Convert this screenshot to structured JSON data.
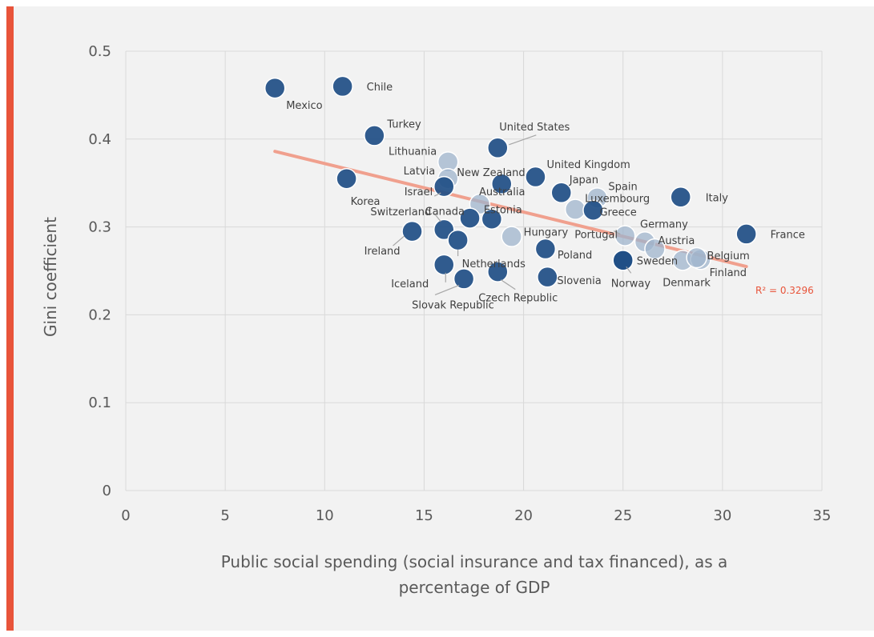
{
  "colors": {
    "accent": "#e8543a",
    "background": "#f2f2f2",
    "marker_fill": "#1f4e85",
    "marker_alt_fill": "#9fb4cc",
    "trendline": "#f0a08e",
    "r2_text": "#e8543a"
  },
  "chart_data": {
    "type": "scatter",
    "title": "",
    "xlabel_lines": [
      "Public social spending (social insurance and tax financed), as a",
      "percentage of GDP"
    ],
    "ylabel": "Gini coefficient",
    "xlim": [
      0,
      35
    ],
    "ylim": [
      0,
      0.5
    ],
    "x_ticks": [
      "0",
      "5",
      "10",
      "15",
      "20",
      "25",
      "30",
      "35"
    ],
    "y_ticks": [
      "0",
      "0.1",
      "0.2",
      "0.3",
      "0.4",
      "0.5"
    ],
    "grid": true,
    "legend": "none",
    "points": [
      {
        "label": "Mexico",
        "x": 7.5,
        "y": 0.458
      },
      {
        "label": "Chile",
        "x": 10.9,
        "y": 0.46
      },
      {
        "label": "Turkey",
        "x": 12.5,
        "y": 0.404
      },
      {
        "label": "Korea",
        "x": 11.1,
        "y": 0.355
      },
      {
        "label": "United States",
        "x": 18.7,
        "y": 0.39
      },
      {
        "label": "Lithuania",
        "x": 16.2,
        "y": 0.374
      },
      {
        "label": "New Zealand",
        "x": 18.9,
        "y": 0.349
      },
      {
        "label": "Latvia",
        "x": 16.2,
        "y": 0.355
      },
      {
        "label": "Israel",
        "x": 16.0,
        "y": 0.346
      },
      {
        "label": "United Kingdom",
        "x": 20.6,
        "y": 0.357
      },
      {
        "label": "Japan",
        "x": 21.9,
        "y": 0.339
      },
      {
        "label": "Spain",
        "x": 23.7,
        "y": 0.333
      },
      {
        "label": "Luxembourg",
        "x": 22.6,
        "y": 0.32
      },
      {
        "label": "Greece",
        "x": 23.5,
        "y": 0.319
      },
      {
        "label": "Italy",
        "x": 27.9,
        "y": 0.334
      },
      {
        "label": "Australia",
        "x": 17.8,
        "y": 0.326
      },
      {
        "label": "Canada",
        "x": 17.3,
        "y": 0.31
      },
      {
        "label": "Estonia",
        "x": 18.4,
        "y": 0.309
      },
      {
        "label": "Switzerland",
        "x": 16.0,
        "y": 0.297
      },
      {
        "label": "Hungary",
        "x": 19.4,
        "y": 0.289
      },
      {
        "label": "Ireland",
        "x": 14.4,
        "y": 0.295
      },
      {
        "label": "Portugal",
        "x": 25.1,
        "y": 0.29
      },
      {
        "label": "Germany",
        "x": 26.1,
        "y": 0.283
      },
      {
        "label": "Austria",
        "x": 26.6,
        "y": 0.275
      },
      {
        "label": "France",
        "x": 31.2,
        "y": 0.292
      },
      {
        "label": "Netherlands",
        "x": 16.7,
        "y": 0.285
      },
      {
        "label": "Poland",
        "x": 21.1,
        "y": 0.275
      },
      {
        "label": "Sweden",
        "x": 25.0,
        "y": 0.262
      },
      {
        "label": "Denmark",
        "x": 28.0,
        "y": 0.262
      },
      {
        "label": "Belgium",
        "x": 28.9,
        "y": 0.263
      },
      {
        "label": "Finland",
        "x": 28.7,
        "y": 0.265
      },
      {
        "label": "Norway",
        "x": 25.0,
        "y": 0.262
      },
      {
        "label": "Iceland",
        "x": 16.0,
        "y": 0.257
      },
      {
        "label": "Czech Republic",
        "x": 18.7,
        "y": 0.249
      },
      {
        "label": "Slovak Republic",
        "x": 17.0,
        "y": 0.241
      },
      {
        "label": "Slovenia",
        "x": 21.2,
        "y": 0.243
      }
    ],
    "trendline": {
      "x": [
        7.5,
        31.2
      ],
      "y": [
        0.386,
        0.255
      ],
      "label": "R² = 0.3296"
    }
  }
}
